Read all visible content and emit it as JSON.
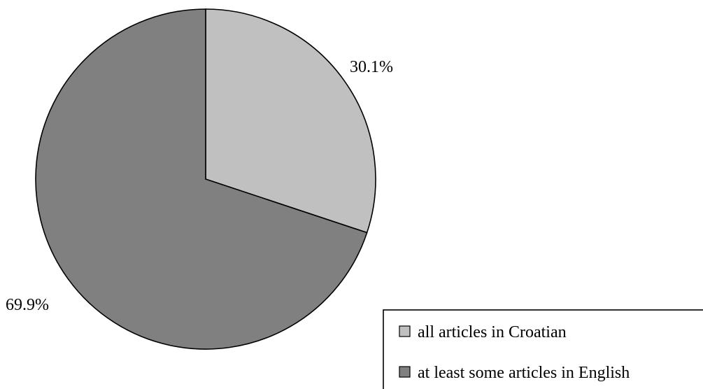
{
  "chart_data": {
    "type": "pie",
    "categories": [
      "all articles in Croatian",
      "at least some articles in English"
    ],
    "values": [
      30.1,
      69.9
    ],
    "data_labels": [
      "30.1%",
      "69.9%"
    ],
    "colors": [
      "#c0c0c0",
      "#808080"
    ],
    "start": "12 o'clock",
    "direction": "clockwise",
    "legend_position": "bottom-right",
    "title": ""
  }
}
